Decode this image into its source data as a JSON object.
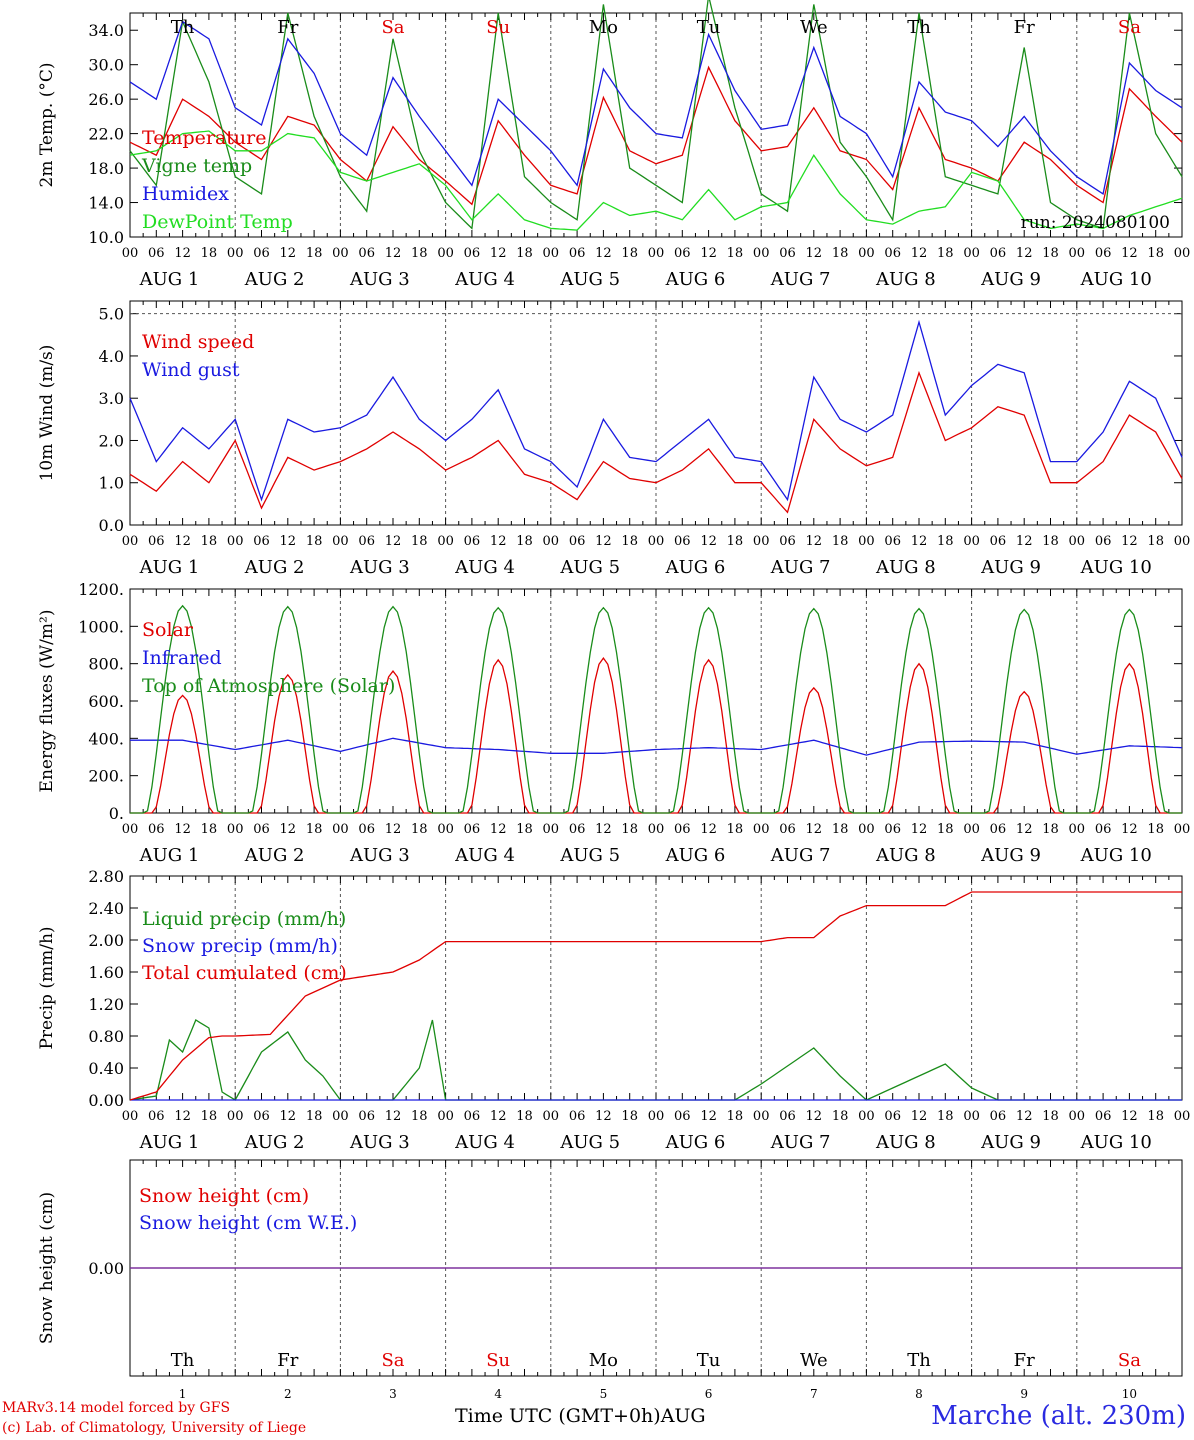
{
  "footer": {
    "model_line": "MARv3.14 model forced by GFS",
    "copyright_line": "(c) Lab. of Climatology, University of Liege",
    "time_axis_title": "Time UTC (GMT+0h)",
    "month": "AUG",
    "station": "Marche (alt. 230m)"
  },
  "colors": {
    "red": "#e00000",
    "green": "#1a8c1a",
    "blue": "#1a1ae0",
    "light_green": "#22dd22",
    "purple": "#7a2a9a"
  },
  "days": [
    {
      "abbr": "Th",
      "num": "1",
      "weekend": false
    },
    {
      "abbr": "Fr",
      "num": "2",
      "weekend": false
    },
    {
      "abbr": "Sa",
      "num": "3",
      "weekend": true
    },
    {
      "abbr": "Su",
      "num": "4",
      "weekend": true
    },
    {
      "abbr": "Mo",
      "num": "5",
      "weekend": false
    },
    {
      "abbr": "Tu",
      "num": "6",
      "weekend": false
    },
    {
      "abbr": "We",
      "num": "7",
      "weekend": false
    },
    {
      "abbr": "Th",
      "num": "8",
      "weekend": false
    },
    {
      "abbr": "Fr",
      "num": "9",
      "weekend": false
    },
    {
      "abbr": "Sa",
      "num": "10",
      "weekend": true
    }
  ],
  "hour_ticks": [
    "00",
    "06",
    "12",
    "18"
  ],
  "chart_data": [
    {
      "type": "line",
      "title": "",
      "ylabel": "2m Temp. (°C)",
      "ylim": [
        10,
        36
      ],
      "yticks": [
        "10.0",
        "14.0",
        "18.0",
        "22.0",
        "26.0",
        "30.0",
        "34.0"
      ],
      "annotation": "run: 2024080100",
      "x_unit": "hours from AUG 1 00 UTC",
      "x_range": [
        0,
        240
      ],
      "series": [
        {
          "name": "Temperature",
          "color": "red",
          "x": [
            0,
            6,
            12,
            18,
            24,
            30,
            36,
            42,
            48,
            54,
            60,
            66,
            72,
            78,
            84,
            90,
            96,
            102,
            108,
            114,
            120,
            126,
            132,
            138,
            144,
            150,
            156,
            162,
            168,
            174,
            180,
            186,
            192,
            198,
            204,
            210,
            216,
            222,
            228,
            234,
            240
          ],
          "values": [
            21,
            19.5,
            26,
            24,
            21,
            19,
            24,
            23,
            19,
            16.5,
            22.8,
            19,
            16.5,
            13.8,
            23.5,
            19.5,
            16,
            15,
            26.2,
            20,
            18.5,
            19.5,
            29.7,
            23.5,
            20,
            20.5,
            25,
            20,
            19,
            15.5,
            25,
            19,
            18,
            16.5,
            21,
            19,
            16,
            14,
            27.2,
            24,
            21
          ]
        },
        {
          "name": "Vigne temp",
          "color": "green",
          "x": [
            0,
            6,
            12,
            18,
            24,
            30,
            36,
            42,
            48,
            54,
            60,
            66,
            72,
            78,
            84,
            90,
            96,
            102,
            108,
            114,
            120,
            126,
            132,
            138,
            144,
            150,
            156,
            162,
            168,
            174,
            180,
            186,
            192,
            198,
            204,
            210,
            216,
            222,
            228,
            234,
            240
          ],
          "values": [
            20,
            16,
            35,
            28,
            17,
            15,
            36,
            24,
            17,
            13,
            33,
            20,
            14,
            11,
            36,
            17,
            14,
            12,
            37,
            18,
            16,
            14,
            38,
            25,
            15,
            13,
            37,
            21,
            17,
            12,
            36,
            17,
            16,
            15,
            32,
            14,
            12,
            11,
            36,
            22,
            17
          ]
        },
        {
          "name": "Humidex",
          "color": "blue",
          "x": [
            0,
            6,
            12,
            18,
            24,
            30,
            36,
            42,
            48,
            54,
            60,
            66,
            72,
            78,
            84,
            90,
            96,
            102,
            108,
            114,
            120,
            126,
            132,
            138,
            144,
            150,
            156,
            162,
            168,
            174,
            180,
            186,
            192,
            198,
            204,
            210,
            216,
            222,
            228,
            234,
            240
          ],
          "values": [
            28,
            26,
            35,
            33,
            25,
            23,
            33,
            29,
            22,
            19.5,
            28.5,
            24,
            20,
            16,
            26,
            23,
            20,
            16,
            29.5,
            25,
            22,
            21.5,
            33.5,
            27,
            22.5,
            23,
            32,
            24,
            22,
            17,
            28,
            24.5,
            23.5,
            20.5,
            24,
            20,
            17,
            15,
            30.2,
            27,
            25
          ]
        },
        {
          "name": "DewPoint Temp",
          "color": "light_green",
          "x": [
            0,
            6,
            12,
            18,
            24,
            30,
            36,
            42,
            48,
            54,
            60,
            66,
            72,
            78,
            84,
            90,
            96,
            102,
            108,
            114,
            120,
            126,
            132,
            138,
            144,
            150,
            156,
            162,
            168,
            174,
            180,
            186,
            192,
            198,
            204,
            210,
            216,
            222,
            228,
            234,
            240
          ],
          "values": [
            19.5,
            20,
            22,
            22.3,
            20,
            20,
            22,
            21.5,
            17.5,
            16.5,
            17.5,
            18.5,
            16,
            12,
            15,
            12,
            11,
            10.8,
            14,
            12.5,
            13,
            12,
            15.5,
            12,
            13.5,
            14,
            19.5,
            15,
            12,
            11.5,
            13,
            13.5,
            17.5,
            16.5,
            12,
            11,
            11.5,
            11,
            12.5,
            13.5,
            14.5
          ]
        }
      ]
    },
    {
      "type": "line",
      "title": "",
      "ylabel": "10m Wind (m/s)",
      "ylim": [
        0,
        5.3
      ],
      "yticks": [
        "0.0",
        "1.0",
        "2.0",
        "3.0",
        "4.0",
        "5.0"
      ],
      "x_range": [
        0,
        240
      ],
      "series": [
        {
          "name": "Wind speed",
          "color": "red",
          "x": [
            0,
            6,
            12,
            18,
            24,
            30,
            36,
            42,
            48,
            54,
            60,
            66,
            72,
            78,
            84,
            90,
            96,
            102,
            108,
            114,
            120,
            126,
            132,
            138,
            144,
            150,
            156,
            162,
            168,
            174,
            180,
            186,
            192,
            198,
            204,
            210,
            216,
            222,
            228,
            234,
            240
          ],
          "values": [
            1.2,
            0.8,
            1.5,
            1.0,
            2.0,
            0.4,
            1.6,
            1.3,
            1.5,
            1.8,
            2.2,
            1.8,
            1.3,
            1.6,
            2.0,
            1.2,
            1.0,
            0.6,
            1.5,
            1.1,
            1.0,
            1.3,
            1.8,
            1.0,
            1.0,
            0.3,
            2.5,
            1.8,
            1.4,
            1.6,
            3.6,
            2.0,
            2.3,
            2.8,
            2.6,
            1.0,
            1.0,
            1.5,
            2.6,
            2.2,
            1.1
          ]
        },
        {
          "name": "Wind gust",
          "color": "blue",
          "x": [
            0,
            6,
            12,
            18,
            24,
            30,
            36,
            42,
            48,
            54,
            60,
            66,
            72,
            78,
            84,
            90,
            96,
            102,
            108,
            114,
            120,
            126,
            132,
            138,
            144,
            150,
            156,
            162,
            168,
            174,
            180,
            186,
            192,
            198,
            204,
            210,
            216,
            222,
            228,
            234,
            240
          ],
          "values": [
            3.0,
            1.5,
            2.3,
            1.8,
            2.5,
            0.6,
            2.5,
            2.2,
            2.3,
            2.6,
            3.5,
            2.5,
            2.0,
            2.5,
            3.2,
            1.8,
            1.5,
            0.9,
            2.5,
            1.6,
            1.5,
            2.0,
            2.5,
            1.6,
            1.5,
            0.6,
            3.5,
            2.5,
            2.2,
            2.6,
            4.8,
            2.6,
            3.3,
            3.8,
            3.6,
            1.5,
            1.5,
            2.2,
            3.4,
            3.0,
            1.6
          ]
        }
      ],
      "reference_line": 5.0
    },
    {
      "type": "line",
      "title": "",
      "ylabel": "Energy fluxes (W/m²)",
      "ylim": [
        0,
        1200
      ],
      "yticks": [
        "0.",
        "200.",
        "400.",
        "600.",
        "800.",
        "1000.",
        "1200."
      ],
      "x_range": [
        0,
        240
      ],
      "series": [
        {
          "name": "Solar",
          "color": "red",
          "day_peaks": [
            630,
            740,
            760,
            820,
            830,
            820,
            670,
            800,
            650,
            800
          ]
        },
        {
          "name": "Infrared",
          "color": "blue",
          "x": [
            0,
            12,
            24,
            36,
            48,
            60,
            72,
            84,
            96,
            108,
            120,
            132,
            144,
            156,
            168,
            180,
            192,
            204,
            216,
            228,
            240
          ],
          "values": [
            390,
            390,
            340,
            390,
            330,
            400,
            350,
            340,
            320,
            320,
            340,
            350,
            340,
            390,
            310,
            380,
            385,
            380,
            315,
            360,
            350
          ]
        },
        {
          "name": "Top of Atmosphere (Solar)",
          "color": "green",
          "day_peaks": [
            1110,
            1105,
            1105,
            1100,
            1100,
            1100,
            1095,
            1095,
            1090,
            1090
          ]
        }
      ]
    },
    {
      "type": "line",
      "title": "",
      "ylabel": "Precip (mm/h)",
      "ylim": [
        0,
        2.8
      ],
      "yticks": [
        "0.00",
        "0.40",
        "0.80",
        "1.20",
        "1.60",
        "2.00",
        "2.40",
        "2.80"
      ],
      "x_range": [
        0,
        240
      ],
      "series": [
        {
          "name": "Liquid precip (mm/h)",
          "color": "green",
          "x": [
            0,
            6,
            9,
            12,
            15,
            18,
            21,
            24,
            30,
            36,
            40,
            44,
            48,
            60,
            66,
            69,
            72,
            78,
            138,
            144,
            156,
            162,
            168,
            186,
            192,
            198,
            240
          ],
          "values": [
            0,
            0.05,
            0.75,
            0.6,
            1.0,
            0.9,
            0.1,
            0,
            0.6,
            0.85,
            0.5,
            0.3,
            0,
            0,
            0.4,
            1.0,
            0,
            0,
            0,
            0.2,
            0.65,
            0.3,
            0,
            0.45,
            0.15,
            0,
            0
          ]
        },
        {
          "name": "Snow precip (mm/h)",
          "color": "blue",
          "x": [
            0,
            240
          ],
          "values": [
            0,
            0
          ]
        },
        {
          "name": "Total cumulated (cm)",
          "color": "red",
          "x": [
            0,
            6,
            12,
            18,
            21,
            24,
            32,
            40,
            48,
            60,
            66,
            72,
            144,
            150,
            156,
            162,
            168,
            186,
            192,
            240
          ],
          "values": [
            0,
            0.1,
            0.5,
            0.78,
            0.8,
            0.8,
            0.82,
            1.3,
            1.5,
            1.6,
            1.75,
            1.98,
            1.98,
            2.03,
            2.03,
            2.3,
            2.43,
            2.43,
            2.6,
            2.6
          ]
        }
      ]
    },
    {
      "type": "line",
      "title": "",
      "ylabel": "Snow height (cm)",
      "yticks": [
        "0.00"
      ],
      "x_range": [
        0,
        240
      ],
      "series": [
        {
          "name": "Snow height (cm)",
          "color": "red",
          "x": [
            0,
            240
          ],
          "values": [
            0,
            0
          ]
        },
        {
          "name": "Snow height (cm W.E.)",
          "color": "blue",
          "x": [
            0,
            240
          ],
          "values": [
            0,
            0
          ]
        }
      ]
    }
  ]
}
